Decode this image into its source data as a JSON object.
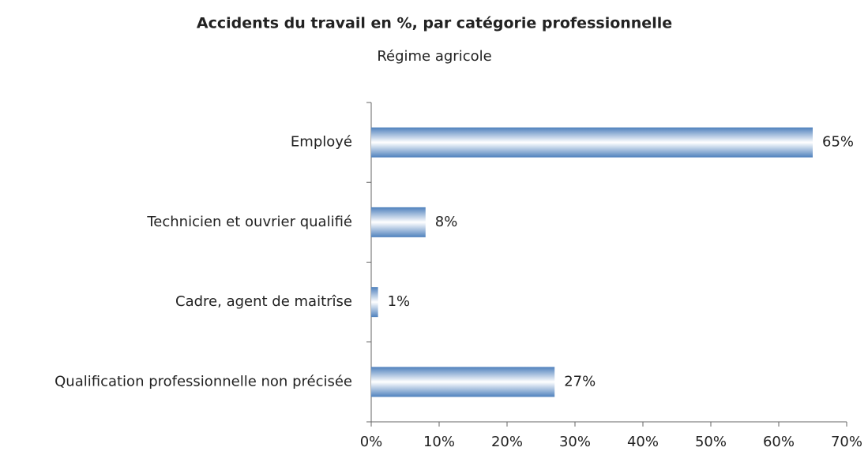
{
  "chart_data": {
    "type": "barh",
    "title": "Accidents du travail en %, par catégorie professionnelle",
    "subtitle": "Régime agricole",
    "categories": [
      "Employé",
      "Technicien et ouvrier qualifié",
      "Cadre, agent de maitrîse",
      "Qualification professionnelle non précisée"
    ],
    "values": [
      65,
      8,
      1,
      27
    ],
    "value_labels": [
      "65%",
      "8%",
      "1%",
      "27%"
    ],
    "color": "#4f81bd",
    "xlim": [
      0,
      70
    ],
    "xticks": [
      {
        "value": 0,
        "label": "0%"
      },
      {
        "value": 10,
        "label": "10%"
      },
      {
        "value": 20,
        "label": "20%"
      },
      {
        "value": 30,
        "label": "30%"
      },
      {
        "value": 40,
        "label": "40%"
      },
      {
        "value": 50,
        "label": "50%"
      },
      {
        "value": 60,
        "label": "60%"
      },
      {
        "value": 70,
        "label": "70%"
      }
    ],
    "grid": false
  }
}
